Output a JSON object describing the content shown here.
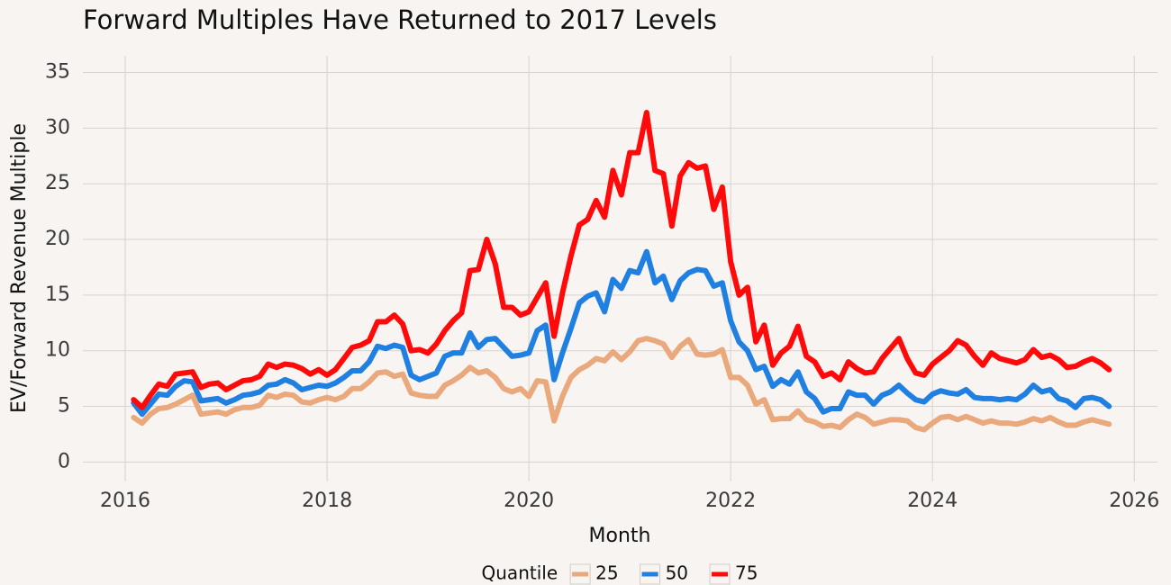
{
  "chart_data": {
    "type": "line",
    "title": "Forward Multiples Have Returned to 2017 Levels",
    "x_label": "Month",
    "y_label": "EV/Forward Revenue Multiple",
    "legend_title": "Quantile",
    "legend_position": "bottom",
    "grid": true,
    "xlim": [
      2015.58,
      2026.23
    ],
    "xticks": [
      2016,
      2018,
      2020,
      2022,
      2024,
      2026
    ],
    "ylim": [
      -1.75,
      36.5
    ],
    "yticks": [
      0,
      5,
      10,
      15,
      20,
      25,
      30,
      35
    ],
    "x": [
      2016.083,
      2016.167,
      2016.25,
      2016.333,
      2016.417,
      2016.5,
      2016.583,
      2016.667,
      2016.75,
      2016.833,
      2016.917,
      2017,
      2017.083,
      2017.167,
      2017.25,
      2017.333,
      2017.417,
      2017.5,
      2017.583,
      2017.667,
      2017.75,
      2017.833,
      2017.917,
      2018,
      2018.083,
      2018.167,
      2018.25,
      2018.333,
      2018.417,
      2018.5,
      2018.583,
      2018.667,
      2018.75,
      2018.833,
      2018.917,
      2019,
      2019.083,
      2019.167,
      2019.25,
      2019.333,
      2019.417,
      2019.5,
      2019.583,
      2019.667,
      2019.75,
      2019.833,
      2019.917,
      2020,
      2020.083,
      2020.167,
      2020.25,
      2020.333,
      2020.417,
      2020.5,
      2020.583,
      2020.667,
      2020.75,
      2020.833,
      2020.917,
      2021,
      2021.083,
      2021.167,
      2021.25,
      2021.333,
      2021.417,
      2021.5,
      2021.583,
      2021.667,
      2021.75,
      2021.833,
      2021.917,
      2022,
      2022.083,
      2022.167,
      2022.25,
      2022.333,
      2022.417,
      2022.5,
      2022.583,
      2022.667,
      2022.75,
      2022.833,
      2022.917,
      2023,
      2023.083,
      2023.167,
      2023.25,
      2023.333,
      2023.417,
      2023.5,
      2023.583,
      2023.667,
      2023.75,
      2023.833,
      2023.917,
      2024,
      2024.083,
      2024.167,
      2024.25,
      2024.333,
      2024.417,
      2024.5,
      2024.583,
      2024.667,
      2024.75,
      2024.833,
      2024.917,
      2025,
      2025.083,
      2025.167,
      2025.25,
      2025.333,
      2025.417,
      2025.5,
      2025.583,
      2025.667,
      2025.75
    ],
    "series": [
      {
        "name": "25",
        "color": "#e9a97c",
        "values": [
          4.0,
          3.5,
          4.3,
          4.8,
          4.9,
          5.2,
          5.6,
          6.0,
          4.3,
          4.4,
          4.5,
          4.3,
          4.7,
          4.9,
          4.9,
          5.1,
          6.0,
          5.8,
          6.1,
          6.0,
          5.4,
          5.3,
          5.6,
          5.8,
          5.6,
          5.9,
          6.6,
          6.6,
          7.2,
          8.0,
          8.1,
          7.7,
          7.9,
          6.2,
          6.0,
          5.9,
          5.9,
          6.9,
          7.3,
          7.8,
          8.5,
          8.0,
          8.2,
          7.6,
          6.6,
          6.3,
          6.6,
          5.9,
          7.3,
          7.2,
          3.7,
          5.9,
          7.6,
          8.3,
          8.7,
          9.3,
          9.1,
          9.9,
          9.2,
          9.9,
          10.9,
          11.1,
          10.9,
          10.6,
          9.4,
          10.4,
          11.0,
          9.7,
          9.6,
          9.7,
          10.1,
          7.6,
          7.6,
          6.9,
          5.2,
          5.6,
          3.8,
          3.9,
          3.9,
          4.6,
          3.8,
          3.6,
          3.2,
          3.3,
          3.1,
          3.8,
          4.3,
          4.0,
          3.4,
          3.6,
          3.8,
          3.8,
          3.7,
          3.1,
          2.9,
          3.5,
          4.0,
          4.1,
          3.8,
          4.1,
          3.8,
          3.5,
          3.7,
          3.5,
          3.5,
          3.4,
          3.6,
          3.9,
          3.7,
          4.0,
          3.6,
          3.3,
          3.3,
          3.6,
          3.8,
          3.6,
          3.4
        ]
      },
      {
        "name": "50",
        "color": "#1f80e2",
        "values": [
          5.3,
          4.3,
          5.2,
          6.1,
          6.0,
          6.8,
          7.3,
          7.2,
          5.5,
          5.6,
          5.7,
          5.3,
          5.6,
          6.0,
          6.1,
          6.3,
          6.9,
          7.0,
          7.4,
          7.1,
          6.5,
          6.7,
          6.9,
          6.8,
          7.1,
          7.6,
          8.2,
          8.2,
          9.0,
          10.4,
          10.2,
          10.5,
          10.3,
          7.8,
          7.4,
          7.7,
          8.0,
          9.5,
          9.8,
          9.8,
          11.6,
          10.3,
          11.0,
          11.1,
          10.3,
          9.5,
          9.6,
          9.8,
          11.8,
          12.3,
          7.4,
          9.8,
          12.0,
          14.3,
          14.9,
          15.2,
          13.5,
          16.4,
          15.6,
          17.2,
          17.0,
          18.9,
          16.1,
          16.7,
          14.6,
          16.3,
          17.0,
          17.3,
          17.2,
          15.8,
          16.1,
          12.7,
          10.8,
          10.0,
          8.3,
          8.6,
          6.8,
          7.4,
          7.0,
          8.1,
          6.3,
          5.7,
          4.5,
          4.8,
          4.8,
          6.3,
          6.0,
          6.0,
          5.2,
          6.0,
          6.3,
          6.9,
          6.2,
          5.6,
          5.4,
          6.1,
          6.4,
          6.2,
          6.1,
          6.5,
          5.8,
          5.7,
          5.7,
          5.6,
          5.7,
          5.6,
          6.1,
          6.9,
          6.3,
          6.5,
          5.7,
          5.5,
          4.9,
          5.7,
          5.8,
          5.6,
          5.0
        ]
      },
      {
        "name": "75",
        "color": "#ff0a0a",
        "values": [
          5.6,
          4.9,
          6.0,
          7.0,
          6.8,
          7.9,
          8.0,
          8.1,
          6.7,
          7.0,
          7.1,
          6.5,
          6.9,
          7.3,
          7.4,
          7.7,
          8.8,
          8.5,
          8.8,
          8.7,
          8.4,
          7.9,
          8.3,
          7.8,
          8.3,
          9.3,
          10.3,
          10.5,
          10.9,
          12.6,
          12.6,
          13.2,
          12.4,
          10.0,
          10.1,
          9.8,
          10.6,
          11.8,
          12.7,
          13.4,
          17.2,
          17.3,
          20.0,
          17.8,
          13.9,
          13.9,
          13.2,
          13.5,
          14.8,
          16.1,
          11.3,
          15.2,
          18.5,
          21.3,
          21.8,
          23.5,
          22.0,
          26.2,
          24.0,
          27.8,
          27.8,
          31.4,
          26.2,
          25.9,
          21.2,
          25.7,
          26.9,
          26.4,
          26.6,
          22.7,
          24.7,
          18.0,
          15.0,
          15.7,
          10.8,
          12.3,
          8.7,
          9.8,
          10.4,
          12.2,
          9.5,
          9.0,
          7.7,
          8.0,
          7.4,
          9.0,
          8.4,
          8.0,
          8.1,
          9.3,
          10.2,
          11.1,
          9.3,
          8.0,
          7.8,
          8.8,
          9.4,
          10.0,
          10.9,
          10.5,
          9.5,
          8.7,
          9.8,
          9.3,
          9.1,
          8.9,
          9.2,
          10.1,
          9.4,
          9.6,
          9.2,
          8.5,
          8.6,
          9.0,
          9.3,
          8.9,
          8.3
        ]
      }
    ]
  }
}
